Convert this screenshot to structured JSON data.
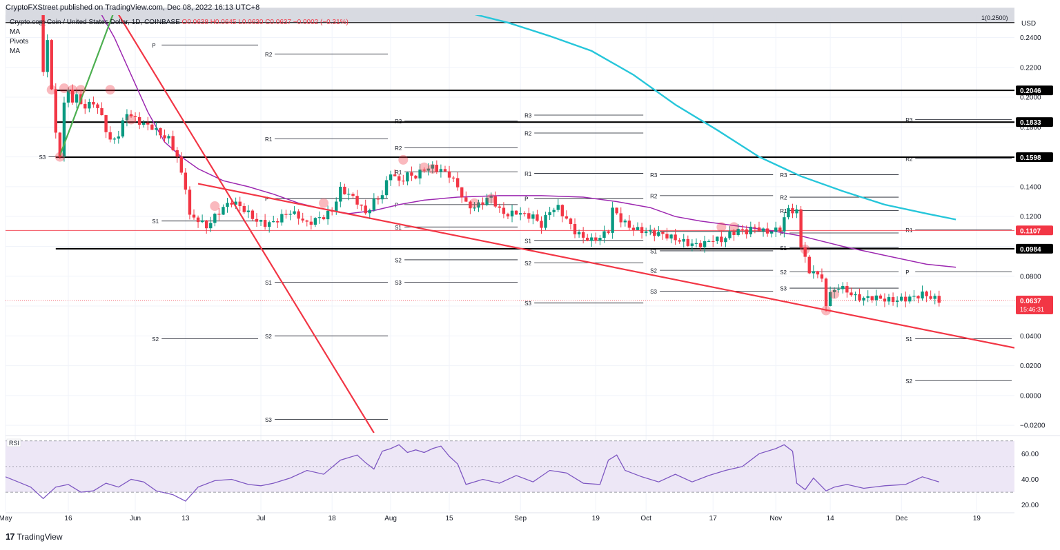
{
  "header": {
    "published": "CryptoFXStreet published on TradingView.com, Dec 08, 2022 16:13 UTC+8",
    "symbol": "Crypto.com Coin / United States Dollar, 1D, COINBASE",
    "ohlc": "O0.0638  H0.0645  L0.0630  C0.0637  −0.0002 (−0.31%)",
    "indicators": [
      "MA",
      "Pivots",
      "MA"
    ]
  },
  "footer": {
    "brand": "TradingView",
    "brand_mark": "17"
  },
  "colors": {
    "up": "#089981",
    "down": "#f23645",
    "ma_purple": "#9c27b0",
    "ma_cyan": "#26c6da",
    "trend_red": "#f23645",
    "trend_green": "#4caf50",
    "rsi": "#7e57c2",
    "rsi_band": "#ede7f6"
  },
  "chart_data": {
    "type": "line",
    "title": "Crypto.com Coin / United States Dollar, 1D, COINBASE",
    "currency_label": "USD",
    "ylim": [
      -0.025,
      0.255
    ],
    "y_ticks": [
      -0.02,
      0,
      0.02,
      0.04,
      0.06,
      0.08,
      0.1,
      0.12,
      0.14,
      0.16,
      0.18,
      0.2,
      0.22,
      0.24
    ],
    "y_tick_labels": [
      "−0.0200",
      "0.0000",
      "0.0200",
      "0.0400",
      "0.0600",
      "0.0800",
      "0.1000",
      "0.1200",
      "0.1400",
      "0.1600",
      "0.1800",
      "0.2000",
      "0.2200",
      "0.2400"
    ],
    "x_ticks": [
      {
        "label": "May",
        "day": 0
      },
      {
        "label": "16",
        "day": 15
      },
      {
        "label": "Jun",
        "day": 31
      },
      {
        "label": "13",
        "day": 43
      },
      {
        "label": "Jul",
        "day": 61
      },
      {
        "label": "18",
        "day": 78
      },
      {
        "label": "Aug",
        "day": 92
      },
      {
        "label": "15",
        "day": 106
      },
      {
        "label": "Sep",
        "day": 123
      },
      {
        "label": "19",
        "day": 141
      },
      {
        "label": "Oct",
        "day": 153
      },
      {
        "label": "17",
        "day": 169
      },
      {
        "label": "Nov",
        "day": 184
      },
      {
        "label": "14",
        "day": 197
      },
      {
        "label": "Dec",
        "day": 214
      },
      {
        "label": "19",
        "day": 232
      }
    ],
    "x_range_days": [
      0,
      241
    ],
    "price_path": [
      [
        9,
        0.26
      ],
      [
        9,
        0.215
      ],
      [
        10,
        0.24
      ],
      [
        11,
        0.205
      ],
      [
        12,
        0.175
      ],
      [
        13,
        0.162
      ],
      [
        14,
        0.195
      ],
      [
        15,
        0.205
      ],
      [
        16,
        0.198
      ],
      [
        17,
        0.2
      ],
      [
        19,
        0.193
      ],
      [
        21,
        0.197
      ],
      [
        23,
        0.187
      ],
      [
        25,
        0.17
      ],
      [
        27,
        0.175
      ],
      [
        29,
        0.19
      ],
      [
        31,
        0.185
      ],
      [
        33,
        0.182
      ],
      [
        35,
        0.18
      ],
      [
        37,
        0.175
      ],
      [
        39,
        0.172
      ],
      [
        41,
        0.16
      ],
      [
        42,
        0.148
      ],
      [
        43,
        0.14
      ],
      [
        44,
        0.12
      ],
      [
        46,
        0.118
      ],
      [
        48,
        0.113
      ],
      [
        50,
        0.12
      ],
      [
        52,
        0.126
      ],
      [
        54,
        0.13
      ],
      [
        56,
        0.127
      ],
      [
        58,
        0.122
      ],
      [
        60,
        0.117
      ],
      [
        62,
        0.115
      ],
      [
        64,
        0.116
      ],
      [
        66,
        0.12
      ],
      [
        68,
        0.123
      ],
      [
        70,
        0.12
      ],
      [
        72,
        0.115
      ],
      [
        74,
        0.118
      ],
      [
        76,
        0.12
      ],
      [
        78,
        0.124
      ],
      [
        80,
        0.138
      ],
      [
        82,
        0.135
      ],
      [
        84,
        0.13
      ],
      [
        86,
        0.122
      ],
      [
        88,
        0.13
      ],
      [
        90,
        0.135
      ],
      [
        92,
        0.15
      ],
      [
        94,
        0.143
      ],
      [
        96,
        0.148
      ],
      [
        98,
        0.147
      ],
      [
        100,
        0.152
      ],
      [
        102,
        0.153
      ],
      [
        104,
        0.151
      ],
      [
        106,
        0.148
      ],
      [
        108,
        0.14
      ],
      [
        110,
        0.128
      ],
      [
        112,
        0.126
      ],
      [
        114,
        0.13
      ],
      [
        116,
        0.133
      ],
      [
        118,
        0.124
      ],
      [
        120,
        0.121
      ],
      [
        122,
        0.123
      ],
      [
        124,
        0.121
      ],
      [
        126,
        0.12
      ],
      [
        128,
        0.114
      ],
      [
        130,
        0.124
      ],
      [
        132,
        0.126
      ],
      [
        134,
        0.118
      ],
      [
        136,
        0.11
      ],
      [
        138,
        0.106
      ],
      [
        140,
        0.104
      ],
      [
        142,
        0.106
      ],
      [
        144,
        0.111
      ],
      [
        145,
        0.125
      ],
      [
        147,
        0.118
      ],
      [
        149,
        0.113
      ],
      [
        151,
        0.111
      ],
      [
        153,
        0.11
      ],
      [
        155,
        0.109
      ],
      [
        157,
        0.108
      ],
      [
        159,
        0.106
      ],
      [
        161,
        0.104
      ],
      [
        163,
        0.102
      ],
      [
        165,
        0.101
      ],
      [
        167,
        0.102
      ],
      [
        169,
        0.105
      ],
      [
        171,
        0.104
      ],
      [
        173,
        0.108
      ],
      [
        175,
        0.111
      ],
      [
        177,
        0.11
      ],
      [
        179,
        0.113
      ],
      [
        181,
        0.11
      ],
      [
        183,
        0.11
      ],
      [
        185,
        0.112
      ],
      [
        187,
        0.125
      ],
      [
        189,
        0.123
      ],
      [
        190,
        0.1
      ],
      [
        191,
        0.094
      ],
      [
        192,
        0.08
      ],
      [
        193,
        0.085
      ],
      [
        195,
        0.077
      ],
      [
        196,
        0.062
      ],
      [
        197,
        0.068
      ],
      [
        199,
        0.073
      ],
      [
        201,
        0.07
      ],
      [
        203,
        0.066
      ],
      [
        205,
        0.065
      ],
      [
        207,
        0.066
      ],
      [
        209,
        0.065
      ],
      [
        211,
        0.064
      ],
      [
        213,
        0.064
      ],
      [
        215,
        0.065
      ],
      [
        217,
        0.066
      ],
      [
        219,
        0.068
      ],
      [
        221,
        0.066
      ],
      [
        223,
        0.0637
      ]
    ],
    "ma_purple": [
      [
        22,
        0.26
      ],
      [
        26,
        0.24
      ],
      [
        30,
        0.215
      ],
      [
        34,
        0.19
      ],
      [
        38,
        0.17
      ],
      [
        42,
        0.16
      ],
      [
        46,
        0.152
      ],
      [
        52,
        0.144
      ],
      [
        58,
        0.14
      ],
      [
        64,
        0.135
      ],
      [
        70,
        0.129
      ],
      [
        76,
        0.125
      ],
      [
        82,
        0.122
      ],
      [
        88,
        0.124
      ],
      [
        94,
        0.128
      ],
      [
        100,
        0.131
      ],
      [
        108,
        0.133
      ],
      [
        118,
        0.134
      ],
      [
        128,
        0.134
      ],
      [
        138,
        0.133
      ],
      [
        146,
        0.13
      ],
      [
        154,
        0.126
      ],
      [
        160,
        0.12
      ],
      [
        166,
        0.117
      ],
      [
        174,
        0.114
      ],
      [
        182,
        0.111
      ],
      [
        190,
        0.107
      ],
      [
        200,
        0.1
      ],
      [
        210,
        0.094
      ],
      [
        220,
        0.088
      ],
      [
        227,
        0.086
      ]
    ],
    "ma_cyan": [
      [
        100,
        0.265
      ],
      [
        110,
        0.257
      ],
      [
        120,
        0.25
      ],
      [
        130,
        0.241
      ],
      [
        140,
        0.231
      ],
      [
        150,
        0.215
      ],
      [
        160,
        0.195
      ],
      [
        170,
        0.178
      ],
      [
        180,
        0.16
      ],
      [
        190,
        0.147
      ],
      [
        200,
        0.137
      ],
      [
        210,
        0.128
      ],
      [
        220,
        0.122
      ],
      [
        227,
        0.118
      ]
    ],
    "horizontal_levels": [
      {
        "value": 0.2046,
        "label": "0.2046"
      },
      {
        "value": 0.1833,
        "label": "0.1833"
      },
      {
        "value": 0.1598,
        "label": "0.1598"
      },
      {
        "value": 0.0984,
        "label": "0.0984"
      }
    ],
    "level_1107": {
      "value": 0.1107,
      "label": "0.1107"
    },
    "resistance_top": {
      "value": 0.25,
      "label": "1(0.2500)"
    },
    "current_price": {
      "value": 0.0637,
      "label": "0.0637",
      "countdown": "15:46:31"
    },
    "trendlines": [
      {
        "color": "red",
        "from": [
          26,
          0.26
        ],
        "to": [
          88,
          -0.025
        ]
      },
      {
        "color": "red",
        "from": [
          46,
          0.142
        ],
        "to": [
          241,
          0.032
        ]
      },
      {
        "color": "green",
        "from": [
          13,
          0.161
        ],
        "to": [
          26,
          0.258
        ]
      }
    ],
    "pivot_groups": [
      {
        "x0": 7,
        "x1": 34,
        "levels": [
          {
            "n": "S2",
            "v": 0.25
          },
          {
            "n": "S3",
            "v": 0.16
          }
        ]
      },
      {
        "x0": 34,
        "x1": 61,
        "levels": [
          {
            "n": "P",
            "v": 0.235
          },
          {
            "n": "S1",
            "v": 0.117
          },
          {
            "n": "S2",
            "v": 0.038
          }
        ]
      },
      {
        "x0": 61,
        "x1": 92,
        "levels": [
          {
            "n": "R2",
            "v": 0.229
          },
          {
            "n": "R1",
            "v": 0.172
          },
          {
            "n": "P",
            "v": 0.132
          },
          {
            "n": "S1",
            "v": 0.076
          },
          {
            "n": "S2",
            "v": 0.04
          },
          {
            "n": "S3",
            "v": -0.016
          }
        ]
      },
      {
        "x0": 92,
        "x1": 123,
        "levels": [
          {
            "n": "R3",
            "v": 0.184
          },
          {
            "n": "R2",
            "v": 0.166
          },
          {
            "n": "R1",
            "v": 0.15
          },
          {
            "n": "P",
            "v": 0.128
          },
          {
            "n": "S1",
            "v": 0.113
          },
          {
            "n": "S2",
            "v": 0.091
          },
          {
            "n": "S3",
            "v": 0.076
          }
        ]
      },
      {
        "x0": 123,
        "x1": 153,
        "levels": [
          {
            "n": "R3",
            "v": 0.188
          },
          {
            "n": "R2",
            "v": 0.176
          },
          {
            "n": "R1",
            "v": 0.149
          },
          {
            "n": "P",
            "v": 0.132
          },
          {
            "n": "S1",
            "v": 0.104
          },
          {
            "n": "S2",
            "v": 0.089
          },
          {
            "n": "S3",
            "v": 0.062
          }
        ]
      },
      {
        "x0": 153,
        "x1": 184,
        "levels": [
          {
            "n": "R3",
            "v": 0.148
          },
          {
            "n": "R2",
            "v": 0.134
          },
          {
            "n": "R1",
            "v": 0.11
          },
          {
            "n": "S1",
            "v": 0.097
          },
          {
            "n": "S2",
            "v": 0.084
          },
          {
            "n": "S3",
            "v": 0.07
          }
        ]
      },
      {
        "x0": 184,
        "x1": 214,
        "levels": [
          {
            "n": "R3",
            "v": 0.148
          },
          {
            "n": "R2",
            "v": 0.133
          },
          {
            "n": "R1",
            "v": 0.124
          },
          {
            "n": "P",
            "v": 0.109
          },
          {
            "n": "S1",
            "v": 0.099
          },
          {
            "n": "S2",
            "v": 0.083
          },
          {
            "n": "S3",
            "v": 0.072
          }
        ]
      },
      {
        "x0": 214,
        "x1": 241,
        "levels": [
          {
            "n": "R3",
            "v": 0.185
          },
          {
            "n": "R2",
            "v": 0.159
          },
          {
            "n": "R1",
            "v": 0.111
          },
          {
            "n": "P",
            "v": 0.083
          },
          {
            "n": "S1",
            "v": 0.038
          },
          {
            "n": "S2",
            "v": 0.01
          }
        ]
      }
    ],
    "highlight_circles": [
      [
        11,
        0.205
      ],
      [
        13,
        0.16
      ],
      [
        14,
        0.206
      ],
      [
        16,
        0.205
      ],
      [
        18,
        0.205
      ],
      [
        25,
        0.205
      ],
      [
        30,
        0.185
      ],
      [
        50,
        0.127
      ],
      [
        76,
        0.129
      ],
      [
        95,
        0.158
      ],
      [
        100,
        0.153
      ],
      [
        102,
        0.152
      ],
      [
        112,
        0.129
      ],
      [
        116,
        0.132
      ],
      [
        171,
        0.113
      ],
      [
        174,
        0.113
      ],
      [
        191,
        0.098
      ],
      [
        196,
        0.057
      ],
      [
        198,
        0.068
      ]
    ],
    "rsi": {
      "label": "RSI",
      "ylim": [
        15,
        72
      ],
      "ticks": [
        20,
        40,
        60
      ],
      "tick_labels": [
        "20.00",
        "40.00",
        "60.00"
      ],
      "band": [
        30,
        70
      ],
      "midline": 50,
      "values": [
        [
          0,
          42
        ],
        [
          3,
          38
        ],
        [
          6,
          34
        ],
        [
          9,
          25
        ],
        [
          12,
          34
        ],
        [
          15,
          36
        ],
        [
          18,
          30
        ],
        [
          21,
          31
        ],
        [
          24,
          37
        ],
        [
          27,
          34
        ],
        [
          30,
          40
        ],
        [
          33,
          38
        ],
        [
          36,
          31
        ],
        [
          40,
          28
        ],
        [
          43,
          23
        ],
        [
          46,
          34
        ],
        [
          50,
          39
        ],
        [
          54,
          40
        ],
        [
          58,
          36
        ],
        [
          61,
          35
        ],
        [
          64,
          37
        ],
        [
          68,
          41
        ],
        [
          72,
          47
        ],
        [
          76,
          44
        ],
        [
          80,
          55
        ],
        [
          84,
          59
        ],
        [
          86,
          53
        ],
        [
          88,
          48
        ],
        [
          90,
          62
        ],
        [
          92,
          64
        ],
        [
          94,
          67
        ],
        [
          96,
          61
        ],
        [
          98,
          63
        ],
        [
          100,
          61
        ],
        [
          102,
          64
        ],
        [
          104,
          66
        ],
        [
          106,
          58
        ],
        [
          108,
          52
        ],
        [
          110,
          36
        ],
        [
          114,
          40
        ],
        [
          118,
          37
        ],
        [
          122,
          43
        ],
        [
          126,
          38
        ],
        [
          130,
          47
        ],
        [
          134,
          45
        ],
        [
          138,
          37
        ],
        [
          142,
          36
        ],
        [
          144,
          55
        ],
        [
          146,
          59
        ],
        [
          148,
          47
        ],
        [
          152,
          42
        ],
        [
          156,
          38
        ],
        [
          160,
          44
        ],
        [
          164,
          38
        ],
        [
          168,
          43
        ],
        [
          172,
          47
        ],
        [
          176,
          50
        ],
        [
          180,
          60
        ],
        [
          184,
          64
        ],
        [
          186,
          67
        ],
        [
          188,
          62
        ],
        [
          189,
          37
        ],
        [
          191,
          32
        ],
        [
          193,
          41
        ],
        [
          196,
          31
        ],
        [
          198,
          34
        ],
        [
          201,
          36
        ],
        [
          205,
          33
        ],
        [
          210,
          35
        ],
        [
          215,
          36
        ],
        [
          219,
          42
        ],
        [
          223,
          38
        ]
      ]
    },
    "header_band": {
      "from": 0.25,
      "to": 0.26
    }
  }
}
